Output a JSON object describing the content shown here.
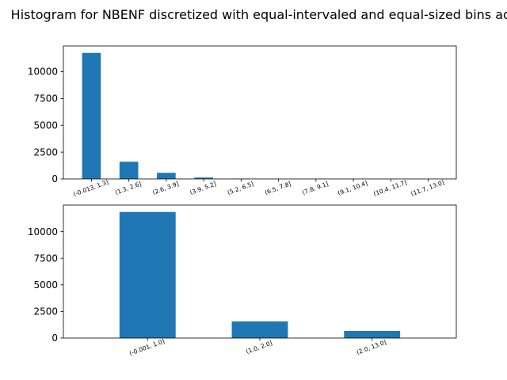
{
  "title": "Histogram for NBENF discretized with equal-intervaled and equal-sized bins adh_clean",
  "colors": {
    "bar": "#1f77b4",
    "axis": "#000000"
  },
  "chart_data": [
    {
      "type": "bar",
      "categories": [
        "(-0.013, 1.3]",
        "(1.3, 2.6]",
        "(2.6, 3.9]",
        "(3.9, 5.2]",
        "(5.2, 6.5]",
        "(6.5, 7.8]",
        "(7.8, 9.1]",
        "(9.1, 10.4]",
        "(10.4, 11.7]",
        "(11.7, 13.0]"
      ],
      "values": [
        11750,
        1600,
        570,
        130,
        20,
        8,
        4,
        2,
        1,
        1
      ],
      "ylim": [
        0,
        12400
      ],
      "yticks": [
        0,
        2500,
        5000,
        7500,
        10000
      ],
      "xlabel": "",
      "ylabel": "",
      "grid": false
    },
    {
      "type": "bar",
      "categories": [
        "(-0.001, 1.0]",
        "(1.0, 2.0]",
        "(2.0, 13.0]"
      ],
      "values": [
        11850,
        1560,
        670
      ],
      "ylim": [
        0,
        12500
      ],
      "yticks": [
        0,
        2500,
        5000,
        7500,
        10000
      ],
      "xlabel": "",
      "ylabel": "",
      "grid": false
    }
  ]
}
